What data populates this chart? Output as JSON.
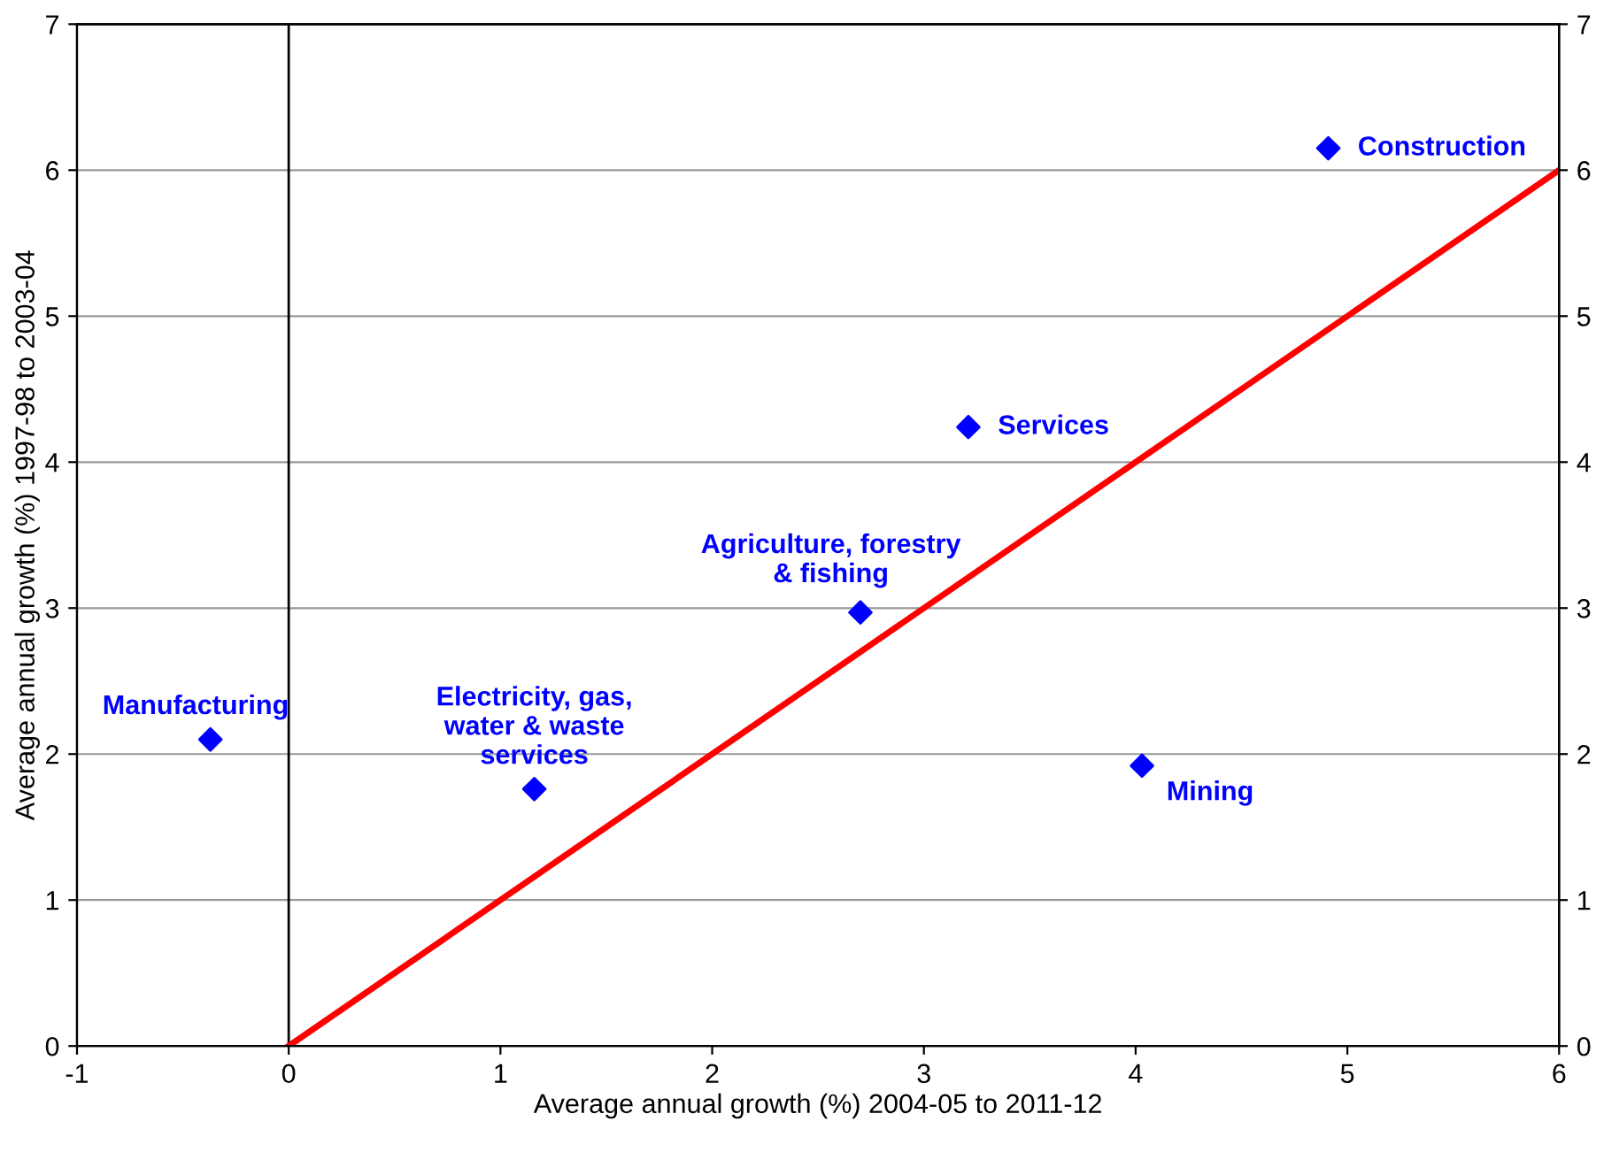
{
  "chart_data": {
    "type": "scatter",
    "xlabel": "Average annual growth (%) 2004-05 to 2011-12",
    "ylabel": "Average annual growth (%) 1997-98 to 2003-04",
    "xlim": [
      -1,
      6
    ],
    "xticks": [
      -1,
      0,
      1,
      2,
      3,
      4,
      5,
      6
    ],
    "ylim": [
      0,
      7
    ],
    "yticks": [
      0,
      1,
      2,
      3,
      4,
      5,
      6,
      7
    ],
    "y2lim": [
      0,
      7
    ],
    "y2ticks": [
      0,
      1,
      2,
      3,
      4,
      5,
      6,
      7
    ],
    "grid": "y",
    "marker": "diamond",
    "series": [
      {
        "color": "#0000ff",
        "x": [
          -0.37,
          1.16,
          2.7,
          3.21,
          4.03,
          4.91
        ],
        "values": [
          2.1,
          1.76,
          2.97,
          4.24,
          1.92,
          6.15
        ]
      },
      {
        "type": "line",
        "color": "#ff0000",
        "x": [
          0,
          6
        ],
        "values": [
          0,
          6
        ],
        "line_style": "solid",
        "marker": "none"
      }
    ],
    "ref_lines": [
      {
        "axis": "x",
        "value": 0,
        "color": "#000000"
      }
    ],
    "annotations": [
      {
        "text": "Manufacturing",
        "x": -0.37,
        "y": 2.1
      },
      {
        "text": "Electricity, gas,\nwater & waste\nservices",
        "x": 1.16,
        "y": 1.76
      },
      {
        "text": "Agriculture, forestry\n& fishing",
        "x": 2.7,
        "y": 2.97
      },
      {
        "text": "Services",
        "x": 3.21,
        "y": 4.24
      },
      {
        "text": "Mining",
        "x": 4.03,
        "y": 1.92
      },
      {
        "text": "Construction",
        "x": 4.91,
        "y": 6.15
      }
    ]
  }
}
